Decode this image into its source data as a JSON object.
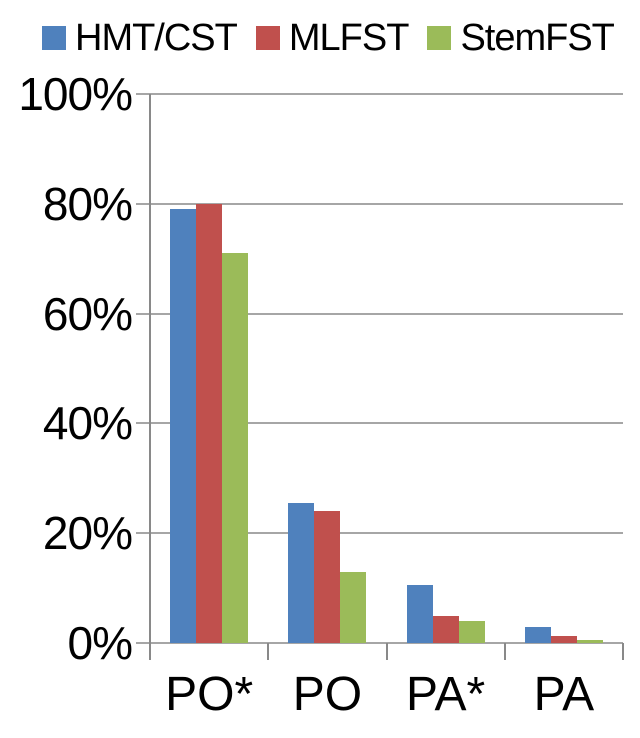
{
  "chart_data": {
    "type": "bar",
    "title": "",
    "xlabel": "",
    "ylabel": "",
    "categories": [
      "PO*",
      "PO",
      "PA*",
      "PA"
    ],
    "series": [
      {
        "name": "HMT/CST",
        "color": "#4F81BD",
        "values": [
          79,
          25.5,
          10.5,
          3
        ]
      },
      {
        "name": "MLFST",
        "color": "#C0504D",
        "values": [
          80,
          24,
          5,
          1.2
        ]
      },
      {
        "name": "StemFST",
        "color": "#9BBB59",
        "values": [
          71,
          13,
          4,
          0.5
        ]
      }
    ],
    "yticks": [
      "100%",
      "80%",
      "60%",
      "40%",
      "20%",
      "0%"
    ],
    "ylim": [
      0,
      100
    ],
    "y_unit": "percent",
    "grid": "horizontal",
    "legend_position": "top"
  },
  "colors": {
    "gridline": "#A6A6A6",
    "axis": "#898989",
    "text": "#000000",
    "background": "#FFFFFF"
  }
}
